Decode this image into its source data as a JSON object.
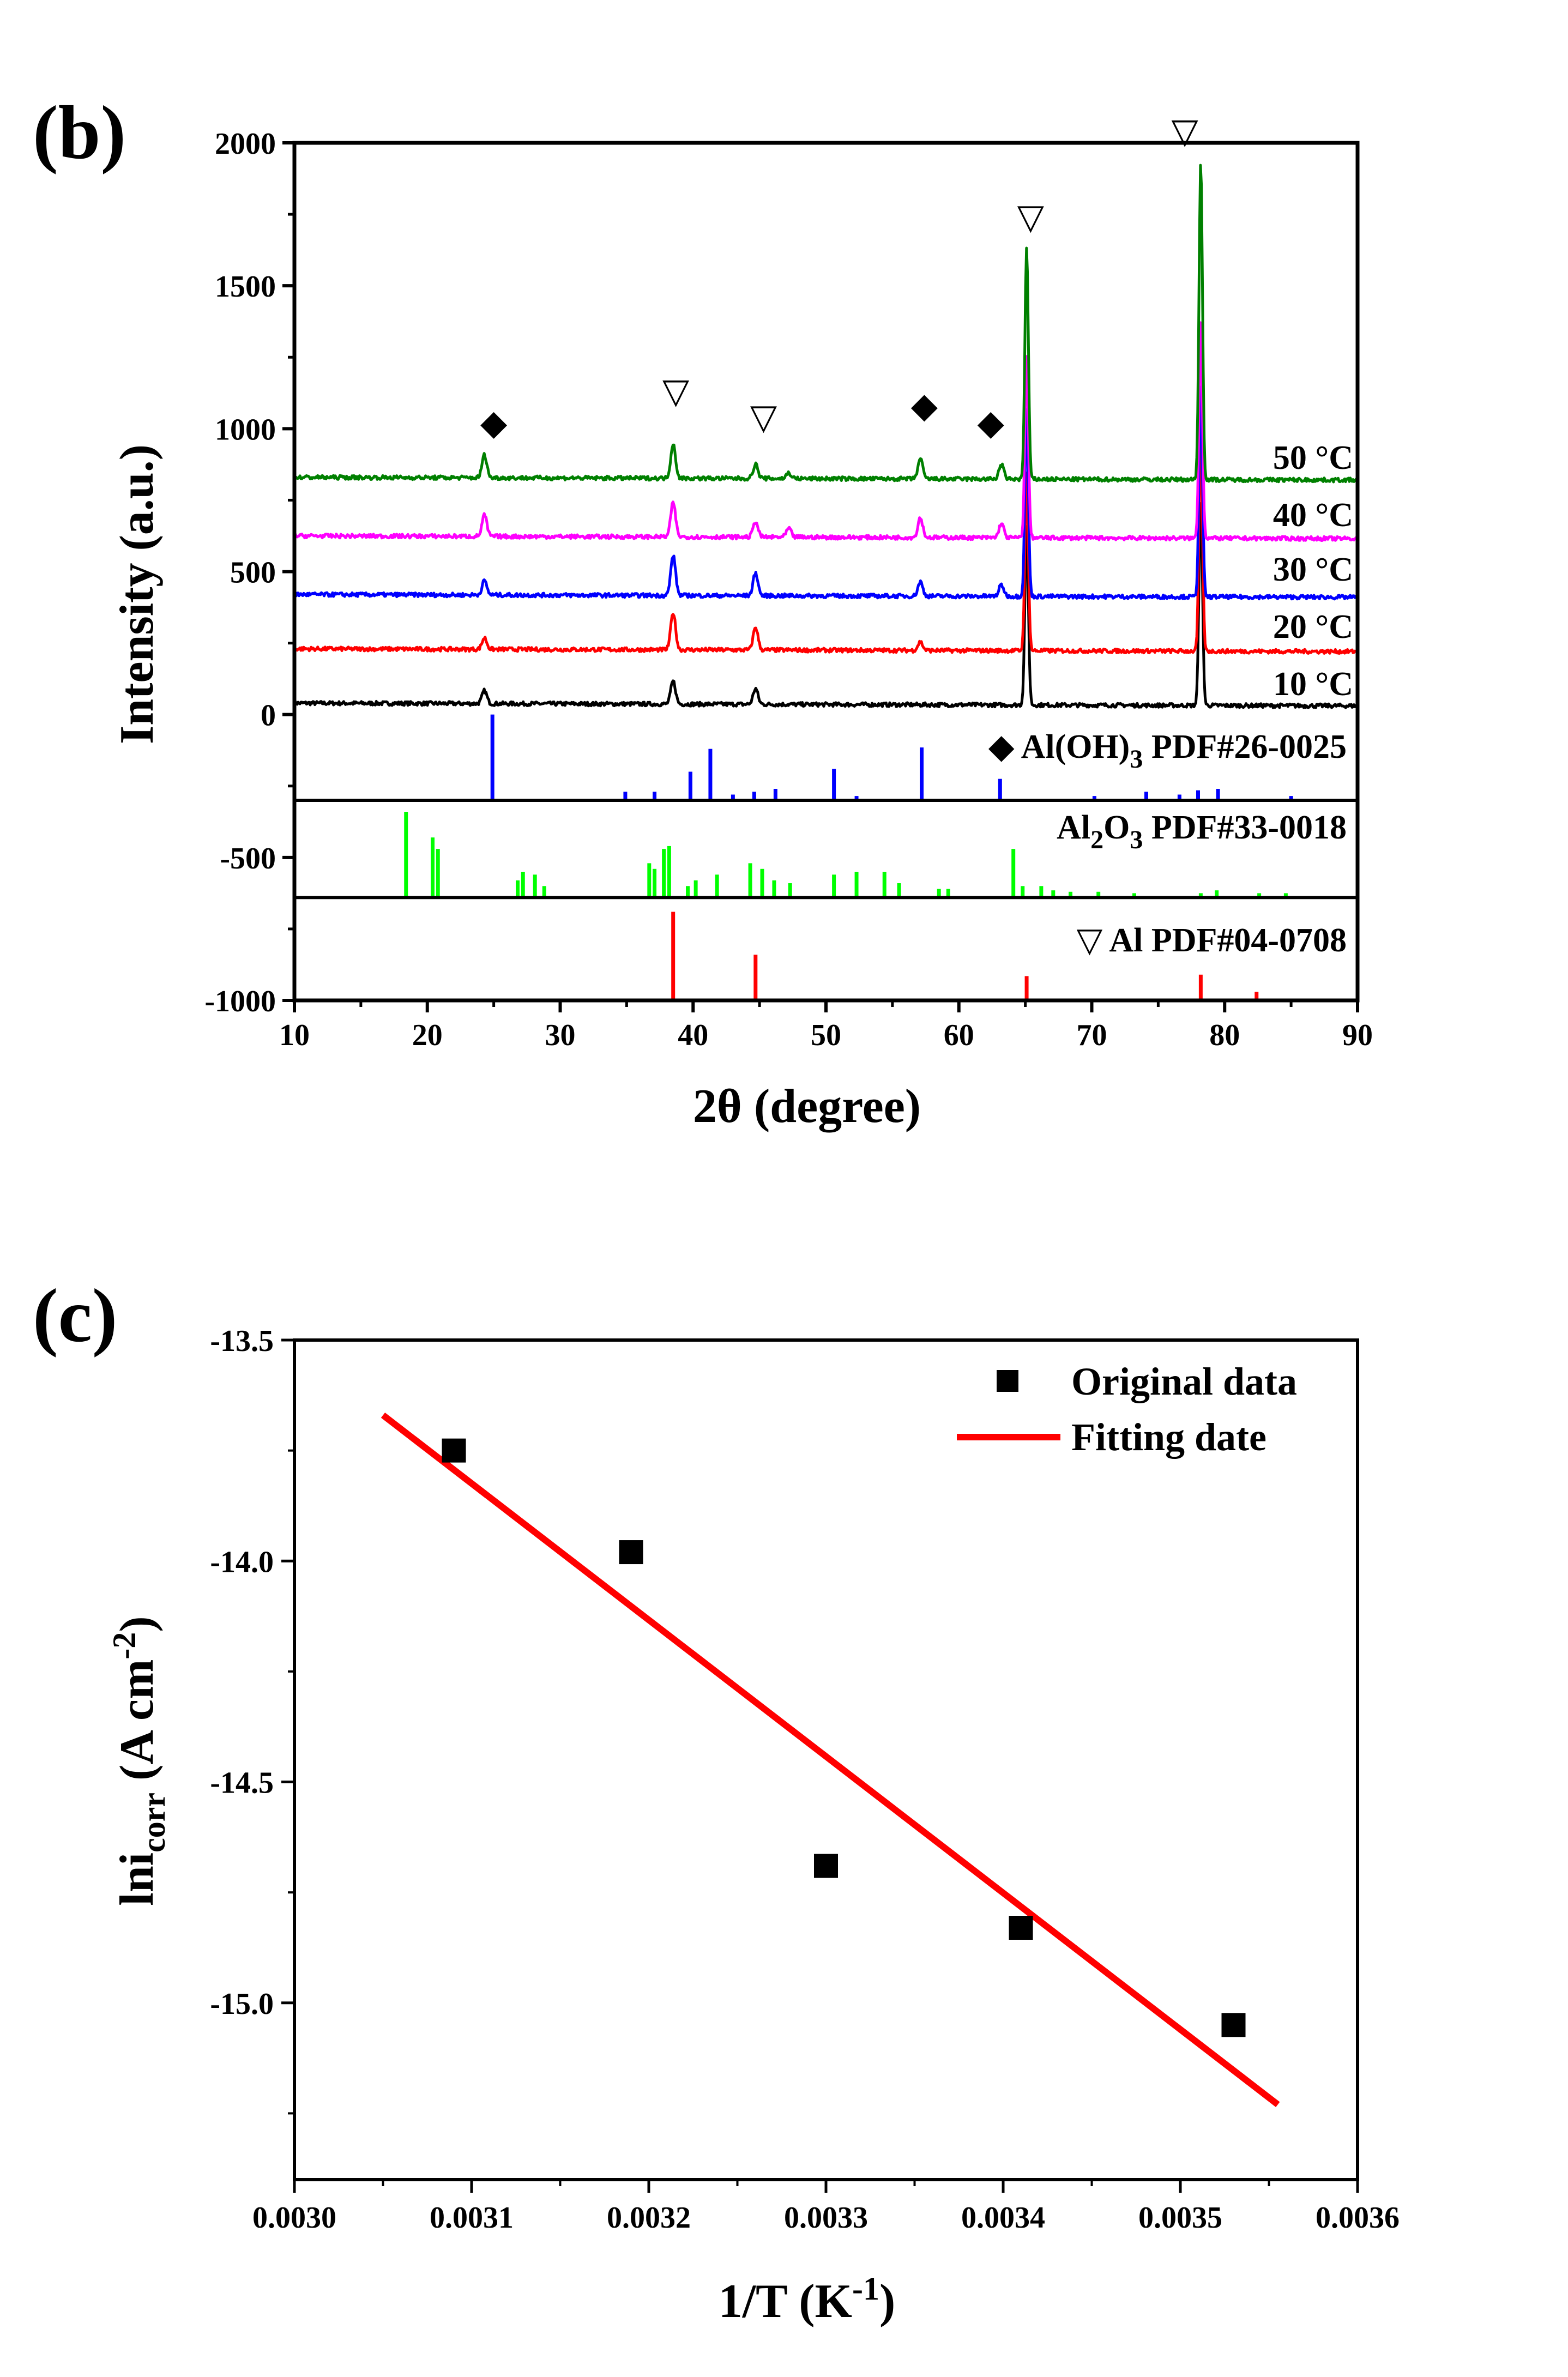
{
  "chart_data": [
    {
      "panel_label": "(b)",
      "type": "line",
      "xlabel": "2θ (degree)",
      "ylabel": "Intensity (a.u.)",
      "xlim": [
        10,
        90
      ],
      "ylim": [
        -1000,
        2000
      ],
      "xticks": [
        10,
        20,
        30,
        40,
        50,
        60,
        70,
        80,
        90
      ],
      "yticks": [
        2000,
        1500,
        1000,
        500,
        0,
        -500,
        -1000
      ],
      "series": [
        {
          "name": "10 °C",
          "color": "#000000",
          "baseline": 20,
          "peaks": [
            [
              24.3,
              45
            ],
            [
              38.5,
              80
            ],
            [
              44.7,
              55
            ],
            [
              65.1,
              620
            ],
            [
              78.2,
              720
            ]
          ]
        },
        {
          "name": "20 °C",
          "color": "#ff0000",
          "baseline": 210,
          "peaks": [
            [
              24.3,
              40
            ],
            [
              38.5,
              130
            ],
            [
              44.7,
              80
            ],
            [
              57.1,
              30
            ],
            [
              65.1,
              620
            ],
            [
              78.2,
              760
            ]
          ]
        },
        {
          "name": "30 °C",
          "color": "#0000ff",
          "baseline": 400,
          "peaks": [
            [
              24.3,
              50
            ],
            [
              38.5,
              140
            ],
            [
              44.7,
              80
            ],
            [
              57.1,
              50
            ],
            [
              63.2,
              40
            ],
            [
              65.1,
              650
            ],
            [
              78.2,
              740
            ]
          ]
        },
        {
          "name": "40 °C",
          "color": "#ff00ff",
          "baseline": 605,
          "peaks": [
            [
              24.3,
              75
            ],
            [
              38.5,
              120
            ],
            [
              44.7,
              55
            ],
            [
              47.2,
              30
            ],
            [
              57.1,
              70
            ],
            [
              63.2,
              50
            ],
            [
              65.1,
              640
            ],
            [
              78.2,
              760
            ]
          ]
        },
        {
          "name": "50 °C",
          "color": "#008000",
          "baseline": 810,
          "peaks": [
            [
              24.3,
              80
            ],
            [
              38.5,
              120
            ],
            [
              44.7,
              50
            ],
            [
              47.2,
              20
            ],
            [
              57.1,
              70
            ],
            [
              63.2,
              50
            ],
            [
              65.1,
              810
            ],
            [
              78.2,
              1110
            ]
          ]
        }
      ],
      "markers": [
        {
          "symbol": "◆",
          "x": 25.0,
          "y": 980
        },
        {
          "symbol": "▽",
          "x": 38.7,
          "y": 1090
        },
        {
          "symbol": "▽",
          "x": 45.3,
          "y": 1000
        },
        {
          "symbol": "◆",
          "x": 57.4,
          "y": 1040
        },
        {
          "symbol": "◆",
          "x": 62.4,
          "y": 980
        },
        {
          "symbol": "▽",
          "x": 65.4,
          "y": 1700
        },
        {
          "symbol": "▽",
          "x": 77.0,
          "y": 2000
        }
      ],
      "references": [
        {
          "name": "◆ Al(OH)3 PDF#26-0025",
          "name_parts": [
            "◆ Al(OH)",
            "3",
            " PDF#26-0025"
          ],
          "color": "#0000ff",
          "base": -300,
          "lines": [
            [
              24.9,
              300
            ],
            [
              34.9,
              30
            ],
            [
              37.1,
              30
            ],
            [
              39.8,
              100
            ],
            [
              41.3,
              180
            ],
            [
              43.0,
              20
            ],
            [
              44.6,
              30
            ],
            [
              46.2,
              40
            ],
            [
              50.6,
              110
            ],
            [
              52.3,
              15
            ],
            [
              57.2,
              185
            ],
            [
              63.1,
              75
            ],
            [
              70.2,
              15
            ],
            [
              74.1,
              30
            ],
            [
              76.6,
              20
            ],
            [
              78.0,
              35
            ],
            [
              79.5,
              40
            ],
            [
              85.0,
              15
            ]
          ]
        },
        {
          "name": "Al2O3 PDF#33-0018",
          "name_parts": [
            "Al",
            "2",
            "O",
            "3",
            " PDF#33-0018"
          ],
          "color": "#00ff00",
          "base": -640,
          "lines": [
            [
              18.4,
              300
            ],
            [
              20.4,
              210
            ],
            [
              20.8,
              170
            ],
            [
              26.8,
              60
            ],
            [
              27.2,
              90
            ],
            [
              28.1,
              80
            ],
            [
              28.8,
              40
            ],
            [
              36.7,
              120
            ],
            [
              37.1,
              100
            ],
            [
              37.8,
              170
            ],
            [
              38.2,
              180
            ],
            [
              39.6,
              40
            ],
            [
              40.2,
              60
            ],
            [
              41.8,
              80
            ],
            [
              44.3,
              120
            ],
            [
              45.2,
              100
            ],
            [
              46.1,
              60
            ],
            [
              47.3,
              50
            ],
            [
              50.6,
              80
            ],
            [
              52.3,
              90
            ],
            [
              54.4,
              90
            ],
            [
              55.5,
              50
            ],
            [
              58.5,
              30
            ],
            [
              59.2,
              30
            ],
            [
              64.1,
              170
            ],
            [
              64.8,
              40
            ],
            [
              66.2,
              40
            ],
            [
              67.1,
              25
            ],
            [
              68.4,
              20
            ],
            [
              70.5,
              20
            ],
            [
              73.2,
              15
            ],
            [
              78.2,
              15
            ],
            [
              79.4,
              25
            ],
            [
              82.6,
              15
            ],
            [
              84.6,
              15
            ]
          ]
        },
        {
          "name": "▽ Al PDF#04-0708",
          "name_parts": [
            "▽ Al PDF#04-0708"
          ],
          "color": "#ff0000",
          "base": -1000,
          "lines": [
            [
              38.5,
              310
            ],
            [
              44.7,
              160
            ],
            [
              65.1,
              85
            ],
            [
              78.2,
              90
            ],
            [
              82.4,
              30
            ]
          ]
        }
      ]
    },
    {
      "panel_label": "(c)",
      "type": "scatter",
      "xlabel": "1/T (K-1)",
      "xlabel_parts": [
        "1/T (K",
        "-1",
        ")"
      ],
      "ylabel": "lnicorr (A cm-2)",
      "ylabel_parts": [
        "lni",
        "corr",
        " (A cm",
        "-2",
        ")"
      ],
      "xlim": [
        0.003,
        0.0036
      ],
      "ylim": [
        -15.4,
        -13.5
      ],
      "xticks": [
        "0.0030",
        "0.0031",
        "0.0032",
        "0.0033",
        "0.0034",
        "0.0035",
        "0.0036"
      ],
      "yticks": [
        "-13.5",
        "-14.0",
        "-14.5",
        "-15.0"
      ],
      "series": [
        {
          "name": "Original data",
          "type": "scatter",
          "color": "#000000",
          "x": [
            0.00309,
            0.00319,
            0.0033,
            0.00341,
            0.00353
          ],
          "y": [
            -13.75,
            -13.98,
            -14.69,
            -14.83,
            -15.05
          ]
        },
        {
          "name": "Fitting date",
          "type": "line",
          "color": "#ff0000",
          "x": [
            0.00305,
            0.003555
          ],
          "y": [
            -13.67,
            -15.23
          ]
        }
      ],
      "legend": "top-right"
    }
  ]
}
